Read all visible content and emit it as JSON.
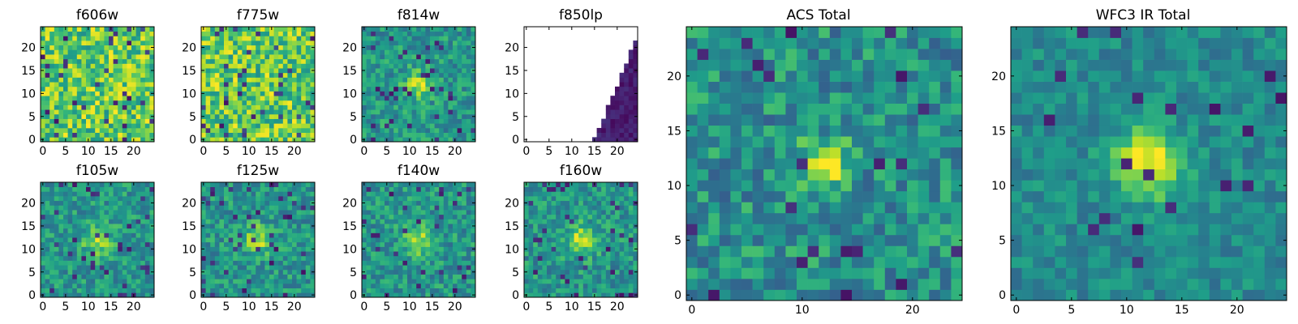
{
  "chart_data": {
    "type": "heatmap",
    "colormap": "viridis",
    "panels": [
      {
        "id": "f606w",
        "title": "f606w",
        "xticks": [
          0,
          5,
          10,
          15,
          20
        ],
        "yticks": [
          0,
          5,
          10,
          15,
          20
        ],
        "range": [
          0,
          24
        ],
        "pattern": "noise_bright",
        "seed": 11
      },
      {
        "id": "f775w",
        "title": "f775w",
        "xticks": [
          0,
          5,
          10,
          15,
          20
        ],
        "yticks": [
          0,
          5,
          10,
          15,
          20
        ],
        "range": [
          0,
          24
        ],
        "pattern": "noise_bright",
        "seed": 23
      },
      {
        "id": "f814w",
        "title": "f814w",
        "xticks": [
          0,
          5,
          10,
          15,
          20
        ],
        "yticks": [
          0,
          5,
          10,
          15,
          20
        ],
        "range": [
          0,
          24
        ],
        "pattern": "noise_source",
        "seed": 37
      },
      {
        "id": "f850lp",
        "title": "f850lp",
        "xticks": [
          0,
          5,
          10,
          15,
          20
        ],
        "yticks": [
          0,
          5,
          10,
          15,
          20
        ],
        "range": [
          0,
          24
        ],
        "pattern": "wedge",
        "seed": 41
      },
      {
        "id": "f105w",
        "title": "f105w",
        "xticks": [
          0,
          5,
          10,
          15,
          20
        ],
        "yticks": [
          0,
          5,
          10,
          15,
          20
        ],
        "range": [
          0,
          24
        ],
        "pattern": "noise_source",
        "seed": 53
      },
      {
        "id": "f125w",
        "title": "f125w",
        "xticks": [
          0,
          5,
          10,
          15,
          20
        ],
        "yticks": [
          0,
          5,
          10,
          15,
          20
        ],
        "range": [
          0,
          24
        ],
        "pattern": "noise_source",
        "seed": 67
      },
      {
        "id": "f140w",
        "title": "f140w",
        "xticks": [
          0,
          5,
          10,
          15,
          20
        ],
        "yticks": [
          0,
          5,
          10,
          15,
          20
        ],
        "range": [
          0,
          24
        ],
        "pattern": "noise_source",
        "seed": 71
      },
      {
        "id": "f160w",
        "title": "f160w",
        "xticks": [
          0,
          5,
          10,
          15,
          20
        ],
        "yticks": [
          0,
          5,
          10,
          15,
          20
        ],
        "range": [
          0,
          24
        ],
        "pattern": "noise_source",
        "seed": 83
      },
      {
        "id": "acs_total",
        "title": "ACS Total",
        "xticks": [
          0,
          10,
          20
        ],
        "yticks": [
          0,
          5,
          10,
          15,
          20
        ],
        "range": [
          0,
          24
        ],
        "pattern": "source_sharp",
        "seed": 97
      },
      {
        "id": "wfc3_total",
        "title": "WFC3 IR Total",
        "xticks": [
          0,
          5,
          10,
          15,
          20
        ],
        "yticks": [
          0,
          5,
          10,
          15,
          20
        ],
        "range": [
          0,
          24
        ],
        "pattern": "source_smooth",
        "seed": 101
      }
    ]
  }
}
